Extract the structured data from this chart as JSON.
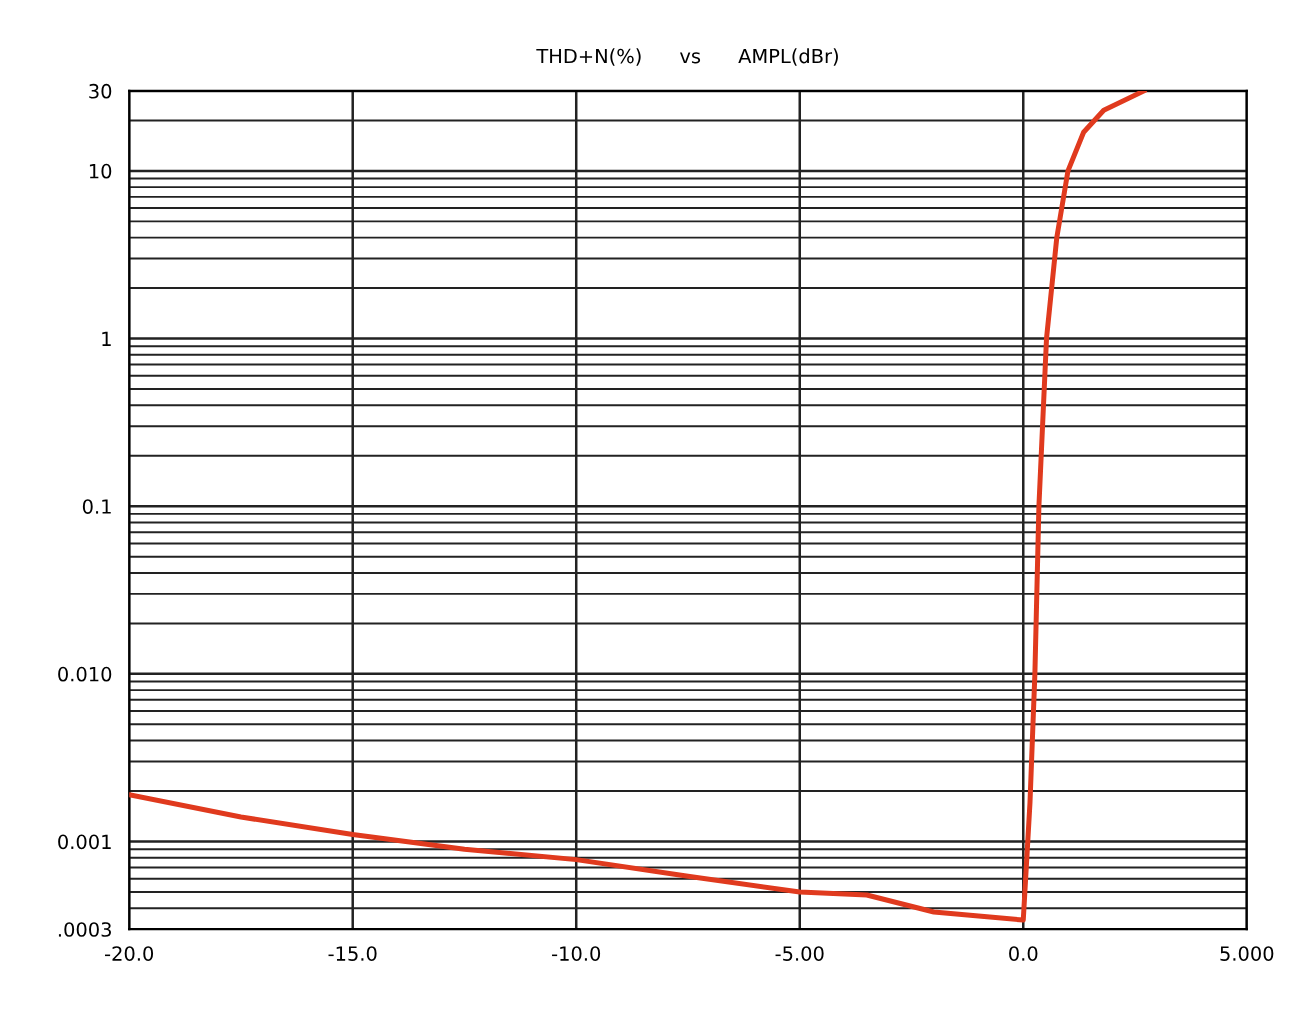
{
  "chart_data": {
    "type": "line",
    "title": "THD+N(%)      vs      AMPL(dBr)",
    "log": "y",
    "grid": true,
    "marker": "none",
    "line_style": "solid",
    "x": [
      -20,
      -17.5,
      -15,
      -12.5,
      -10,
      -7.5,
      -5,
      -3.5,
      -2,
      -1,
      0,
      0.15,
      0.26,
      0.35,
      0.52,
      0.75,
      1.0,
      1.35,
      1.8,
      2.7
    ],
    "series": [
      {
        "color": "#e03a1e",
        "values": [
          0.0019,
          0.0014,
          0.0011,
          0.0009,
          0.00078,
          0.00062,
          0.0005,
          0.00048,
          0.00038,
          0.00036,
          0.00034,
          0.0017,
          0.01,
          0.1,
          1,
          4,
          10,
          17,
          23,
          30
        ]
      }
    ],
    "xlim": [
      -20,
      5
    ],
    "xticks": [
      {
        "value": -20,
        "label": "-20.0"
      },
      {
        "value": -15,
        "label": "-15.0"
      },
      {
        "value": -10,
        "label": "-10.0"
      },
      {
        "value": -5,
        "label": "-5.00"
      },
      {
        "value": 0,
        "label": "0.0"
      },
      {
        "value": 5,
        "label": "5.000"
      }
    ],
    "ylim": [
      0.0003,
      30
    ],
    "yticks": [
      {
        "value": 0.0003,
        "label": ".0003"
      },
      0.001,
      {
        "value": 0.01,
        "label": "0.010"
      },
      0.1,
      1,
      10,
      30
    ]
  }
}
